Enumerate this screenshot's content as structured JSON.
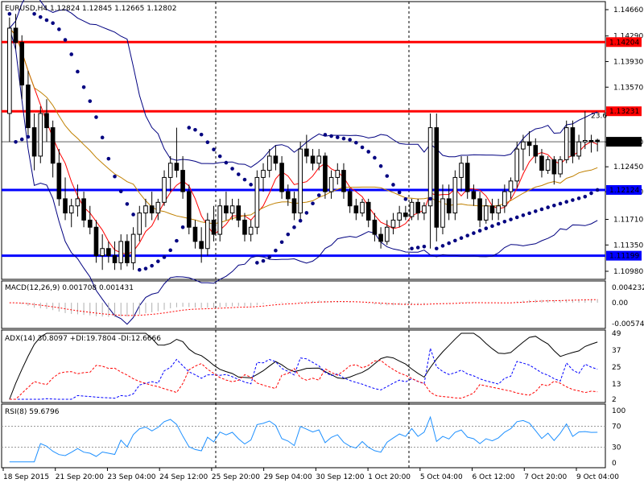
{
  "chart_data": [
    {
      "type": "candlestick",
      "panel": "price",
      "title": "EURUSD,H4",
      "ohlc_label": "1.12824 1.12845 1.12665 1.12802",
      "y_ticks": [
        "1.14660",
        "1.14290",
        "1.13930",
        "1.13570",
        "1.12800",
        "1.12450",
        "1.12100",
        "1.11710",
        "1.11350",
        "1.10980"
      ],
      "ylim": [
        1.1098,
        1.1466
      ],
      "current_price": "1.12802",
      "fib_label": "23.6",
      "horizontal_levels": [
        {
          "value": 1.14204,
          "label": "1.14204",
          "color": "#ff0000"
        },
        {
          "value": 1.13231,
          "label": "1.13231",
          "color": "#ff0000"
        },
        {
          "value": 1.12124,
          "label": "1.12124",
          "color": "#0000ff"
        },
        {
          "value": 1.11199,
          "label": "1.11199",
          "color": "#0000ff"
        }
      ],
      "series": [
        {
          "name": "candles",
          "values": [
            [
              1.132,
              1.1455,
              1.128,
              1.144
            ],
            [
              1.144,
              1.146,
              1.141,
              1.142
            ],
            [
              1.142,
              1.143,
              1.134,
              1.136
            ],
            [
              1.136,
              1.138,
              1.129,
              1.13
            ],
            [
              1.13,
              1.132,
              1.124,
              1.126
            ],
            [
              1.126,
              1.133,
              1.125,
              1.132
            ],
            [
              1.132,
              1.134,
              1.128,
              1.13
            ],
            [
              1.13,
              1.131,
              1.123,
              1.125
            ],
            [
              1.125,
              1.127,
              1.119,
              1.12
            ],
            [
              1.12,
              1.123,
              1.117,
              1.118
            ],
            [
              1.118,
              1.12,
              1.116,
              1.119
            ],
            [
              1.119,
              1.122,
              1.1175,
              1.12
            ],
            [
              1.12,
              1.121,
              1.116,
              1.117
            ],
            [
              1.117,
              1.119,
              1.115,
              1.116
            ],
            [
              1.116,
              1.117,
              1.111,
              1.112
            ],
            [
              1.112,
              1.115,
              1.11,
              1.113
            ],
            [
              1.113,
              1.114,
              1.111,
              1.112
            ],
            [
              1.112,
              1.114,
              1.11,
              1.111
            ],
            [
              1.111,
              1.115,
              1.11,
              1.114
            ],
            [
              1.114,
              1.115,
              1.1105,
              1.111
            ],
            [
              1.111,
              1.116,
              1.11,
              1.115
            ],
            [
              1.115,
              1.119,
              1.114,
              1.118
            ],
            [
              1.118,
              1.12,
              1.116,
              1.119
            ],
            [
              1.119,
              1.121,
              1.117,
              1.118
            ],
            [
              1.118,
              1.12,
              1.117,
              1.1195
            ],
            [
              1.1195,
              1.124,
              1.119,
              1.123
            ],
            [
              1.123,
              1.126,
              1.121,
              1.125
            ],
            [
              1.125,
              1.13,
              1.123,
              1.124
            ],
            [
              1.124,
              1.126,
              1.12,
              1.121
            ],
            [
              1.121,
              1.122,
              1.115,
              1.116
            ],
            [
              1.116,
              1.117,
              1.113,
              1.114
            ],
            [
              1.114,
              1.116,
              1.111,
              1.113
            ],
            [
              1.113,
              1.118,
              1.112,
              1.117
            ],
            [
              1.117,
              1.119,
              1.114,
              1.115
            ],
            [
              1.115,
              1.12,
              1.114,
              1.119
            ],
            [
              1.119,
              1.121,
              1.117,
              1.118
            ],
            [
              1.118,
              1.12,
              1.117,
              1.119
            ],
            [
              1.119,
              1.12,
              1.116,
              1.117
            ],
            [
              1.117,
              1.118,
              1.114,
              1.115
            ],
            [
              1.115,
              1.117,
              1.114,
              1.116
            ],
            [
              1.116,
              1.124,
              1.115,
              1.123
            ],
            [
              1.123,
              1.125,
              1.121,
              1.124
            ],
            [
              1.124,
              1.127,
              1.123,
              1.126
            ],
            [
              1.126,
              1.1275,
              1.124,
              1.125
            ],
            [
              1.125,
              1.126,
              1.12,
              1.121
            ],
            [
              1.121,
              1.122,
              1.119,
              1.12
            ],
            [
              1.12,
              1.121,
              1.117,
              1.118
            ],
            [
              1.118,
              1.128,
              1.117,
              1.127
            ],
            [
              1.127,
              1.129,
              1.125,
              1.126
            ],
            [
              1.126,
              1.127,
              1.124,
              1.125
            ],
            [
              1.125,
              1.127,
              1.124,
              1.126
            ],
            [
              1.126,
              1.1265,
              1.12,
              1.121
            ],
            [
              1.121,
              1.124,
              1.12,
              1.123
            ],
            [
              1.123,
              1.125,
              1.122,
              1.124
            ],
            [
              1.124,
              1.125,
              1.12,
              1.121
            ],
            [
              1.121,
              1.1215,
              1.118,
              1.119
            ],
            [
              1.119,
              1.12,
              1.117,
              1.118
            ],
            [
              1.118,
              1.12,
              1.1175,
              1.1195
            ],
            [
              1.1195,
              1.12,
              1.116,
              1.117
            ],
            [
              1.117,
              1.118,
              1.114,
              1.115
            ],
            [
              1.115,
              1.116,
              1.113,
              1.114
            ],
            [
              1.114,
              1.117,
              1.1135,
              1.116
            ],
            [
              1.116,
              1.118,
              1.115,
              1.117
            ],
            [
              1.117,
              1.119,
              1.116,
              1.118
            ],
            [
              1.118,
              1.119,
              1.117,
              1.1175
            ],
            [
              1.1175,
              1.12,
              1.117,
              1.1195
            ],
            [
              1.1195,
              1.12,
              1.117,
              1.118
            ],
            [
              1.118,
              1.1195,
              1.117,
              1.119
            ],
            [
              1.119,
              1.132,
              1.113,
              1.13
            ],
            [
              1.13,
              1.132,
              1.114,
              1.116
            ],
            [
              1.116,
              1.122,
              1.115,
              1.12
            ],
            [
              1.12,
              1.122,
              1.117,
              1.118
            ],
            [
              1.118,
              1.124,
              1.117,
              1.123
            ],
            [
              1.123,
              1.126,
              1.121,
              1.125
            ],
            [
              1.125,
              1.126,
              1.12,
              1.121
            ],
            [
              1.121,
              1.122,
              1.119,
              1.12
            ],
            [
              1.12,
              1.121,
              1.116,
              1.117
            ],
            [
              1.117,
              1.12,
              1.1165,
              1.119
            ],
            [
              1.119,
              1.12,
              1.117,
              1.118
            ],
            [
              1.118,
              1.12,
              1.117,
              1.119
            ],
            [
              1.119,
              1.122,
              1.118,
              1.121
            ],
            [
              1.121,
              1.123,
              1.12,
              1.1225
            ],
            [
              1.1225,
              1.128,
              1.1215,
              1.127
            ],
            [
              1.127,
              1.129,
              1.124,
              1.128
            ],
            [
              1.128,
              1.1295,
              1.126,
              1.1275
            ],
            [
              1.1275,
              1.1285,
              1.125,
              1.126
            ],
            [
              1.126,
              1.127,
              1.123,
              1.124
            ],
            [
              1.124,
              1.126,
              1.1235,
              1.1255
            ],
            [
              1.1255,
              1.126,
              1.122,
              1.1235
            ],
            [
              1.1235,
              1.126,
              1.123,
              1.1255
            ],
            [
              1.1255,
              1.131,
              1.125,
              1.13
            ],
            [
              1.13,
              1.131,
              1.125,
              1.126
            ],
            [
              1.126,
              1.129,
              1.1255,
              1.128
            ],
            [
              1.128,
              1.1323,
              1.127,
              1.1282
            ],
            [
              1.1282,
              1.129,
              1.1265,
              1.128
            ],
            [
              1.12824,
              1.12845,
              1.12665,
              1.12802
            ]
          ]
        },
        {
          "name": "upper band",
          "color": "#000080"
        },
        {
          "name": "lower band",
          "color": "#000080"
        },
        {
          "name": "fast MA",
          "color": "#ff0000"
        },
        {
          "name": "slow MA",
          "color": "#c08000"
        },
        {
          "name": "parabolic SAR",
          "color": "#000080"
        }
      ]
    },
    {
      "type": "histogram",
      "panel": "macd",
      "title": "MACD(12,26,9) 0.001708 0.001431",
      "y_ticks": [
        "0.004232",
        "0.00",
        "-0.005747"
      ],
      "ylim": [
        -0.005747,
        0.004232
      ]
    },
    {
      "type": "line",
      "panel": "adx",
      "title": "ADX(14) 30.8097 +DI:19.7804 -DI:12.6666",
      "y_ticks": [
        "49",
        "37",
        "25",
        "13",
        "2"
      ],
      "ylim": [
        2,
        49
      ]
    },
    {
      "type": "line",
      "panel": "rsi",
      "title": "RSI(8) 59.6796",
      "y_ticks": [
        "100",
        "70",
        "30",
        "0"
      ],
      "ylim": [
        0,
        100
      ],
      "levels": [
        70,
        30
      ]
    }
  ],
  "x_labels": [
    "18 Sep 2015",
    "21 Sep 20:00",
    "23 Sep 04:00",
    "24 Sep 12:00",
    "25 Sep 20:00",
    "29 Sep 04:00",
    "30 Sep 12:00",
    "1 Oct 20:00",
    "5 Oct 04:00",
    "6 Oct 12:00",
    "7 Oct 20:00",
    "9 Oct 04:00"
  ]
}
